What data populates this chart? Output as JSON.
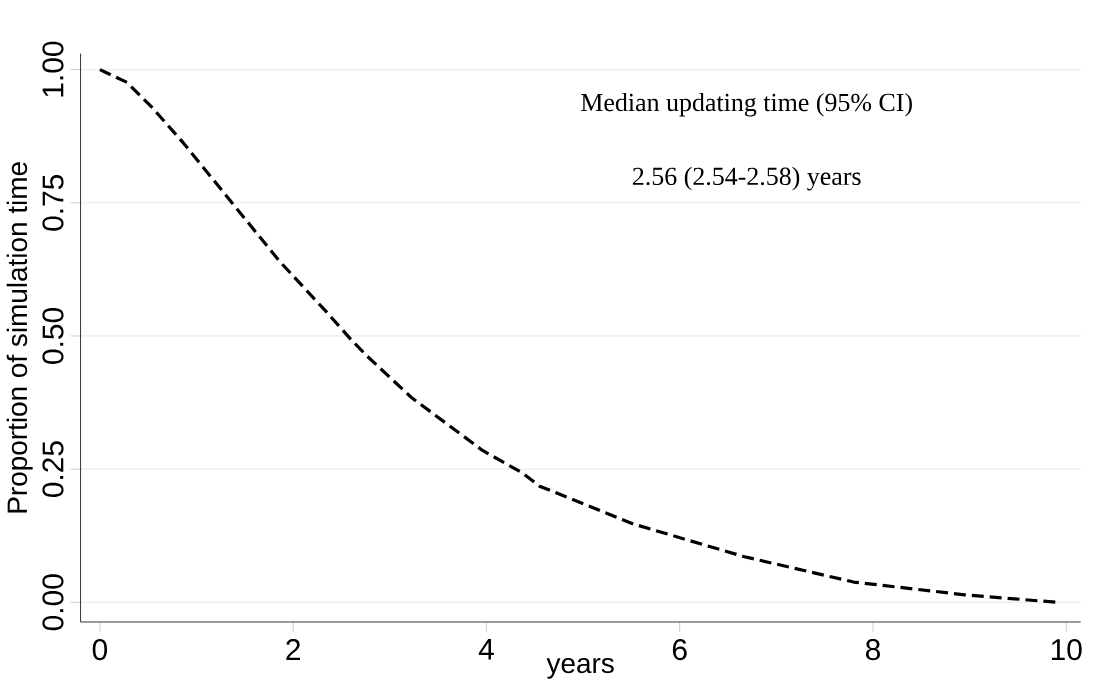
{
  "chart_data": {
    "type": "line",
    "xlabel": "years",
    "ylabel": "Proportion of simulation time",
    "annotations": [
      "Median updating time (95% CI)",
      "2.56 (2.54-2.58) years"
    ],
    "series": [
      {
        "color": "#000000",
        "line_style": "dashed",
        "x": [
          0,
          0.28,
          0.54,
          0.87,
          1.38,
          1.86,
          2.34,
          2.6,
          2.76,
          3.22,
          3.96,
          4.37,
          4.55,
          5.52,
          6.66,
          7.8,
          8.95,
          9.9
        ],
        "values": [
          1.0,
          0.976,
          0.929,
          0.861,
          0.747,
          0.64,
          0.546,
          0.493,
          0.463,
          0.385,
          0.285,
          0.243,
          0.218,
          0.147,
          0.086,
          0.038,
          0.014,
          0.0
        ]
      }
    ],
    "xlim": [
      -0.2,
      10.15
    ],
    "ylim": [
      -0.037,
      1.03
    ],
    "xticks": [
      0,
      2,
      4,
      6,
      8,
      10
    ],
    "yticks": [
      {
        "value": 0,
        "label": "0.00"
      },
      {
        "value": 0.25,
        "label": "0.25"
      },
      {
        "value": 0.5,
        "label": "0.50"
      },
      {
        "value": 0.75,
        "label": "0.75"
      },
      {
        "value": 1,
        "label": "1.00"
      }
    ],
    "grid": "y",
    "marker": "none"
  }
}
